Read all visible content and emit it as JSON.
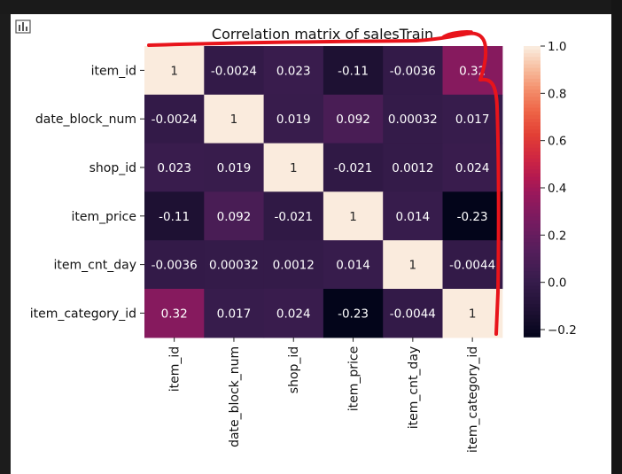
{
  "icons": {
    "panel_icon": "bar-chart-icon"
  },
  "chart_data": {
    "type": "heatmap",
    "title": "Correlation matrix of salesTrain",
    "xlabel": "",
    "ylabel": "",
    "rows": [
      "item_id",
      "date_block_num",
      "shop_id",
      "item_price",
      "item_cnt_day",
      "item_category_id"
    ],
    "cols": [
      "item_id",
      "date_block_num",
      "shop_id",
      "item_price",
      "item_cnt_day",
      "item_category_id"
    ],
    "values": [
      [
        1,
        -0.0024,
        0.023,
        -0.11,
        -0.0036,
        0.32
      ],
      [
        -0.0024,
        1,
        0.019,
        0.092,
        0.00032,
        0.017
      ],
      [
        0.023,
        0.019,
        1,
        -0.021,
        0.0012,
        0.024
      ],
      [
        -0.11,
        0.092,
        -0.021,
        1,
        0.014,
        -0.23
      ],
      [
        -0.0036,
        0.00032,
        0.0012,
        0.014,
        1,
        -0.0044
      ],
      [
        0.32,
        0.017,
        0.024,
        -0.23,
        -0.0044,
        1
      ]
    ],
    "labels": [
      [
        "1",
        "-0.0024",
        "0.023",
        "-0.11",
        "-0.0036",
        "0.32"
      ],
      [
        "-0.0024",
        "1",
        "0.019",
        "0.092",
        "0.00032",
        "0.017"
      ],
      [
        "0.023",
        "0.019",
        "1",
        "-0.021",
        "0.0012",
        "0.024"
      ],
      [
        "-0.11",
        "0.092",
        "-0.021",
        "1",
        "0.014",
        "-0.23"
      ],
      [
        "-0.0036",
        "0.00032",
        "0.0012",
        "0.014",
        "1",
        "-0.0044"
      ],
      [
        "0.32",
        "0.017",
        "0.024",
        "-0.23",
        "-0.0044",
        "1"
      ]
    ],
    "colorbar": {
      "min": -0.23,
      "max": 1.0,
      "ticks": [
        1.0,
        0.8,
        0.6,
        0.4,
        0.2,
        0.0,
        -0.2
      ],
      "tick_labels": [
        "1.0",
        "0.8",
        "0.6",
        "0.4",
        "0.2",
        "0.0",
        "−0.2"
      ],
      "colormap": "rocket"
    }
  },
  "annotation": {
    "color": "#e8141b",
    "shape": "hand-drawn red bracket around the item_category_id column"
  }
}
